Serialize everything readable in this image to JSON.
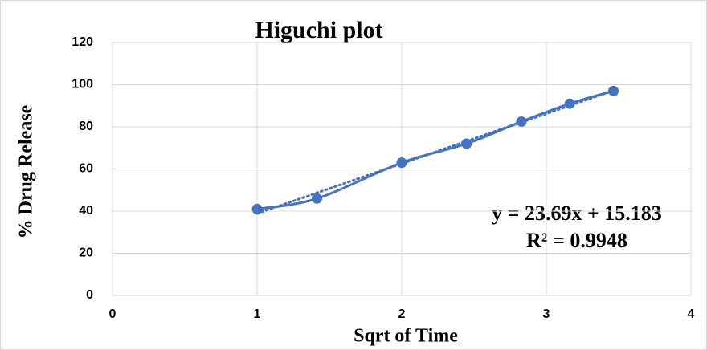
{
  "chart_data": {
    "type": "scatter",
    "title": "Higuchi plot",
    "x_label": "Sqrt of Time",
    "y_label": "% Drug Release",
    "x": [
      1,
      1.414,
      2,
      2.449,
      2.828,
      3.162,
      3.464
    ],
    "values": [
      41,
      46,
      63,
      72,
      82.5,
      91,
      97
    ],
    "color": "#4472c4",
    "trendline": {
      "slope": 23.69,
      "intercept": 15.183,
      "equation": "y = 23.69x + 15.183",
      "r_squared": "R² = 0.9948"
    },
    "xlim": [
      0,
      4
    ],
    "xticks": [
      0,
      1,
      2,
      3,
      4
    ],
    "ylim": [
      0,
      120
    ],
    "yticks": [
      0,
      20,
      40,
      60,
      80,
      100,
      120
    ],
    "grid": true
  }
}
